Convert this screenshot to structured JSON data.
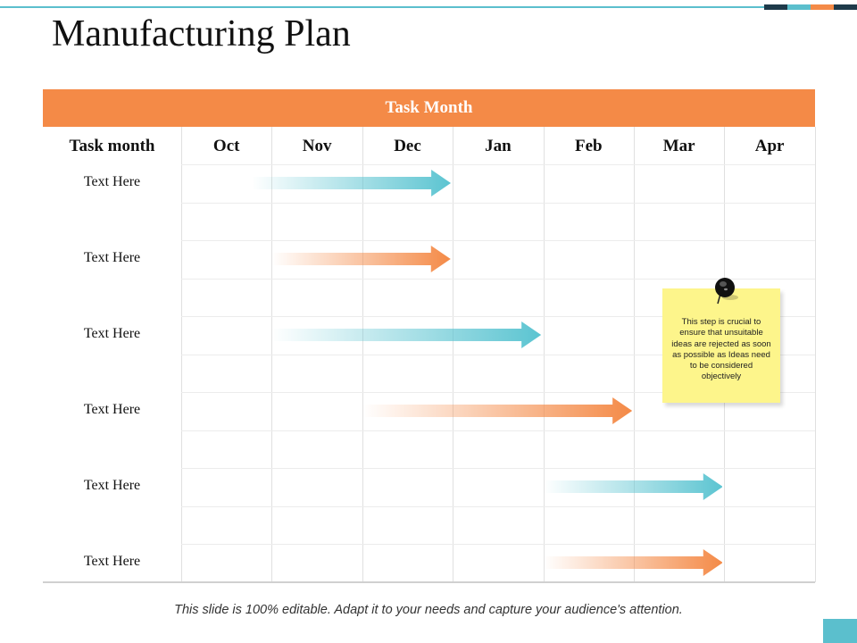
{
  "title": "Manufacturing Plan",
  "table": {
    "header": "Task Month",
    "corner_label": "Task month",
    "months": [
      "Oct",
      "Nov",
      "Dec",
      "Jan",
      "Feb",
      "Mar",
      "Apr"
    ],
    "rows": [
      {
        "label": "Text Here",
        "start": "Oct",
        "end": "Dec",
        "color": "#5bc4d1"
      },
      {
        "label": "Text Here",
        "start": "Nov",
        "end": "Dec",
        "color": "#f48a47"
      },
      {
        "label": "Text Here",
        "start": "Nov",
        "end": "Jan",
        "color": "#5bc4d1"
      },
      {
        "label": "Text Here",
        "start": "Dec",
        "end": "Feb",
        "color": "#f48a47"
      },
      {
        "label": "Text Here",
        "start": "Feb",
        "end": "Mar",
        "color": "#5bc4d1"
      },
      {
        "label": "Text Here",
        "start": "Feb",
        "end": "Mar",
        "color": "#f48a47"
      }
    ]
  },
  "note": {
    "text": "This step is crucial to ensure that unsuitable ideas are rejected as soon as possible as Ideas need to be considered objectively",
    "color": "#fdf58b"
  },
  "footer": "This slide is 100% editable. Adapt it to your needs and capture your audience's attention.",
  "colors": {
    "orange": "#f48a47",
    "teal": "#5bc4d1",
    "dark": "#1e3a4a"
  }
}
